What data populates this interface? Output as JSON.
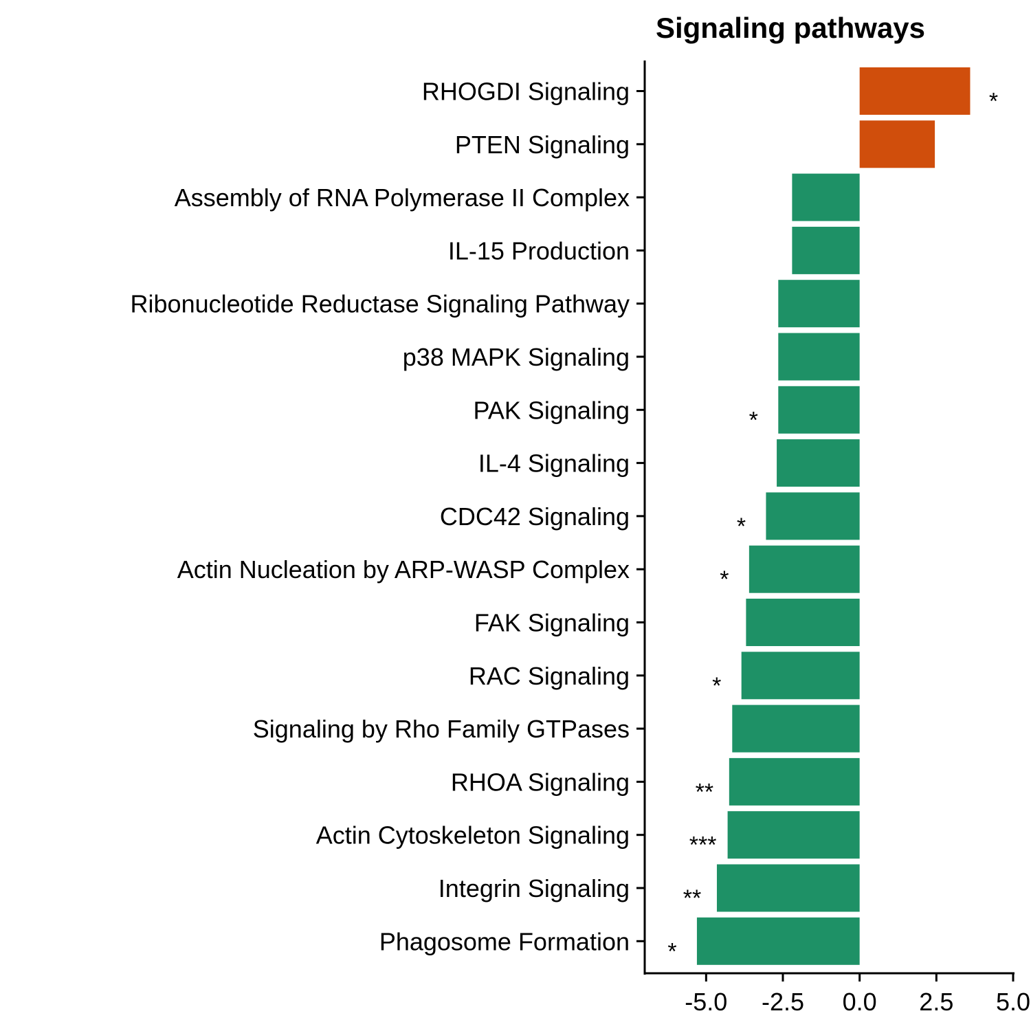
{
  "chart_data": {
    "type": "bar",
    "orientation": "horizontal",
    "title": "Signaling pathways",
    "xlabel": "",
    "ylabel": "",
    "xlim": [
      -7.0,
      5.0
    ],
    "xticks": [
      -5.0,
      -2.5,
      0.0,
      2.5,
      5.0
    ],
    "xtick_labels": [
      "-5.0",
      "-2.5",
      "0.0",
      "2.5",
      "5.0"
    ],
    "grid": false,
    "legend": "none",
    "colors": {
      "positive": "#D04E0C",
      "negative": "#1E9166"
    },
    "categories": [
      "RHOGDI Signaling",
      "PTEN Signaling",
      "Assembly of RNA Polymerase II Complex",
      "IL-15 Production",
      "Ribonucleotide Reductase Signaling Pathway",
      "p38 MAPK Signaling",
      "PAK Signaling",
      "IL-4 Signaling",
      "CDC42 Signaling",
      "Actin Nucleation by ARP-WASP Complex",
      "FAK Signaling",
      "RAC Signaling",
      "Signaling by Rho Family GTPases",
      "RHOA Signaling",
      "Actin Cytoskeleton Signaling",
      "Integrin Signaling",
      "Phagosome Formation"
    ],
    "values": [
      3.6,
      2.45,
      -2.2,
      -2.2,
      -2.65,
      -2.65,
      -2.65,
      -2.7,
      -3.05,
      -3.6,
      -3.7,
      -3.85,
      -4.15,
      -4.25,
      -4.3,
      -4.65,
      -5.3
    ],
    "significance": [
      "*",
      "",
      "",
      "",
      "",
      "",
      "*",
      "",
      "*",
      "*",
      "",
      "*",
      "",
      "**",
      "***",
      "**",
      "*"
    ]
  }
}
